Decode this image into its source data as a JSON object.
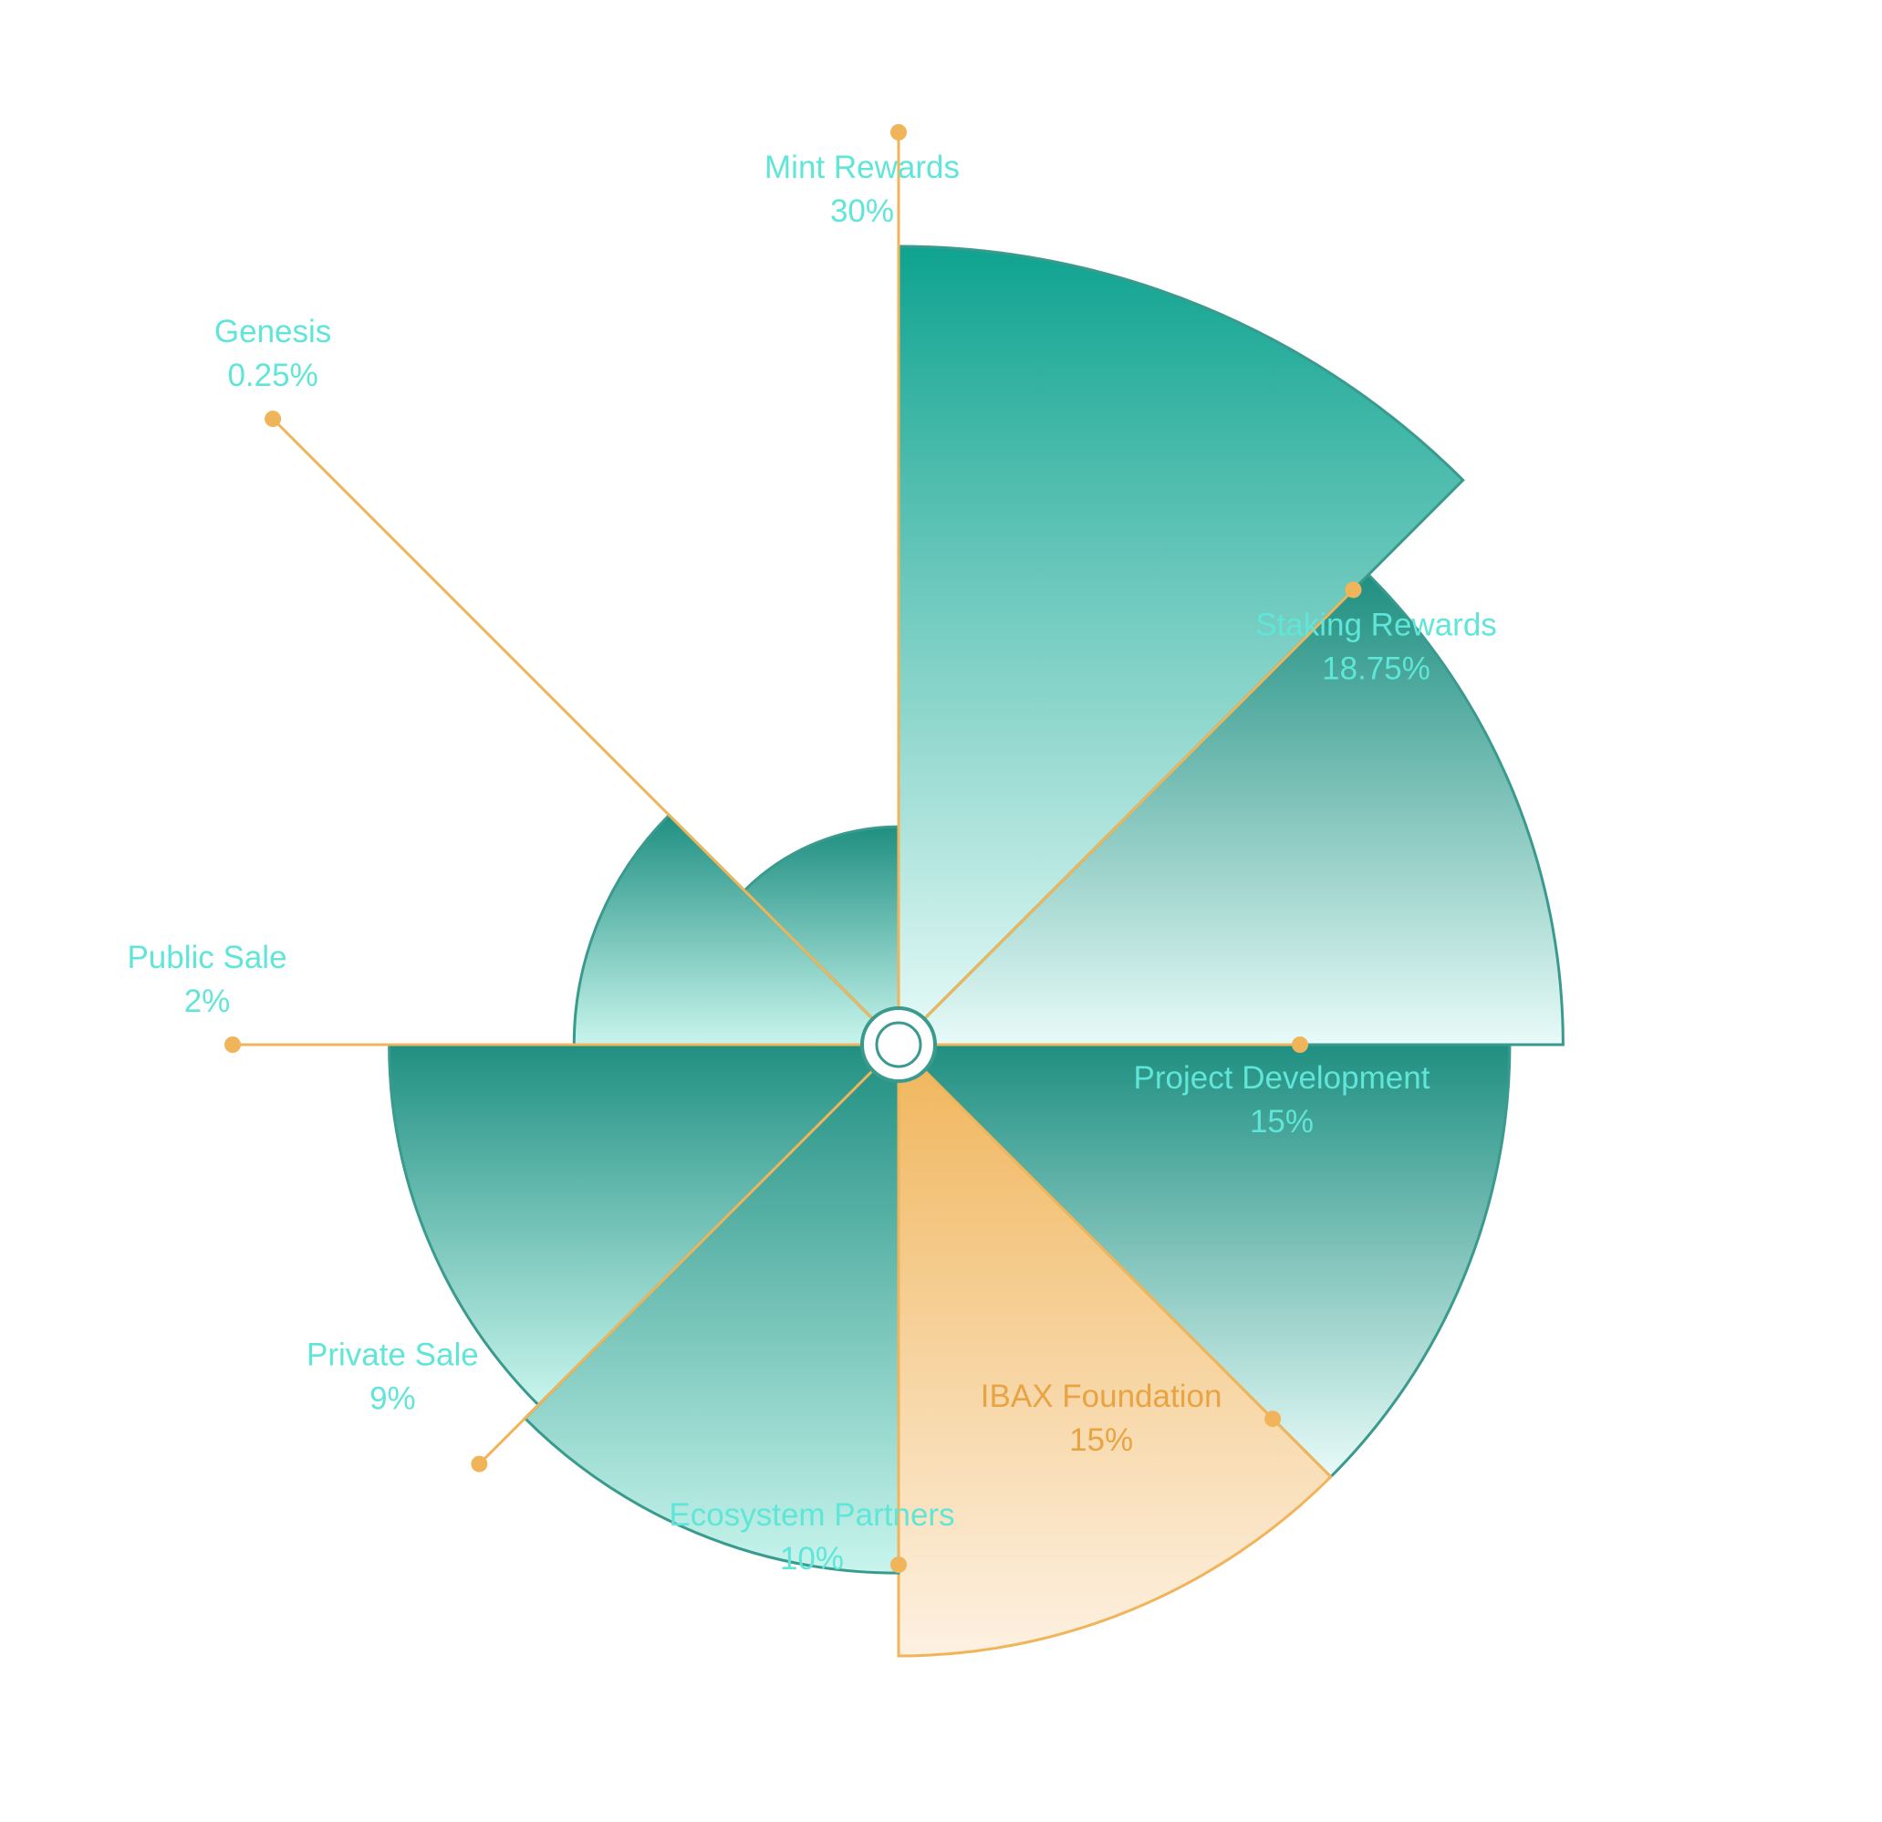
{
  "chart_data": {
    "type": "pie",
    "variant": "rose",
    "slices": [
      {
        "label": "Mint Rewards",
        "value": 30,
        "value_label": "30%",
        "highlighted": false
      },
      {
        "label": "Staking Rewards",
        "value": 18.75,
        "value_label": "18.75%",
        "highlighted": false
      },
      {
        "label": "Project Development",
        "value": 15,
        "value_label": "15%",
        "highlighted": false
      },
      {
        "label": "IBAX Foundation",
        "value": 15,
        "value_label": "15%",
        "highlighted": true
      },
      {
        "label": "Ecosystem Partners",
        "value": 10,
        "value_label": "10%",
        "highlighted": false
      },
      {
        "label": "Private Sale",
        "value": 9,
        "value_label": "9%",
        "highlighted": false
      },
      {
        "label": "Public Sale",
        "value": 2,
        "value_label": "2%",
        "highlighted": false
      },
      {
        "label": "Genesis",
        "value": 0.25,
        "value_label": "0.25%",
        "highlighted": false
      }
    ],
    "colors": {
      "teal_dark": "#0fa390",
      "teal_mid": "#1f8f81",
      "teal_light": "#e8fbf8",
      "mint_light": "#c8f5ed",
      "highlight": "#f0b55a",
      "highlight_light": "#fdf1e2",
      "label_text": "#5fe6d8",
      "highlight_text": "#e8a442",
      "leader_line": "#f0b55a",
      "outline": "#3a9a8e"
    },
    "legend": "none"
  }
}
